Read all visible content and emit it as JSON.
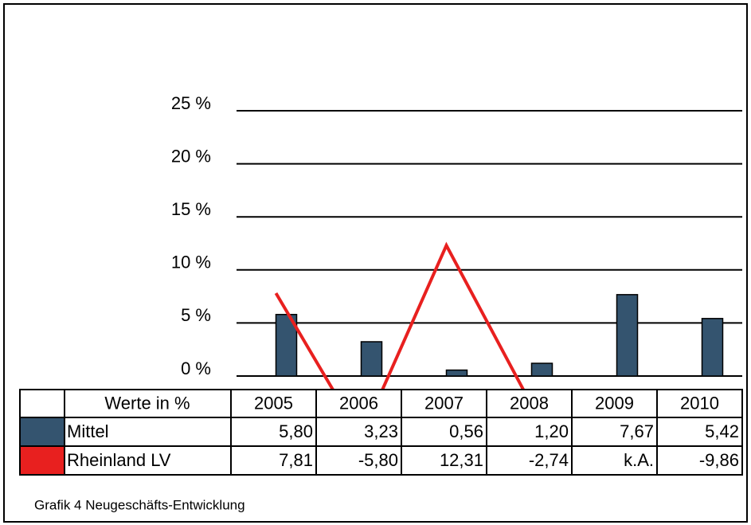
{
  "chart_data": {
    "type": "bar-line",
    "caption": "Grafik 4 Neugeschäfts-Entwicklung",
    "table_header": "Werte in %",
    "categories": [
      "2005",
      "2006",
      "2007",
      "2008",
      "2009",
      "2010"
    ],
    "ylim": [
      0,
      25
    ],
    "yticks": [
      {
        "value": 0,
        "label": "0 %"
      },
      {
        "value": 5,
        "label": "5 %"
      },
      {
        "value": 10,
        "label": "10 %"
      },
      {
        "value": 15,
        "label": "15 %"
      },
      {
        "value": 20,
        "label": "20 %"
      },
      {
        "value": 25,
        "label": "25 %"
      }
    ],
    "grid": true,
    "series": [
      {
        "name": "Mittel",
        "type": "bar",
        "color": "#34546f",
        "values": [
          5.8,
          3.23,
          0.56,
          1.2,
          7.67,
          5.42
        ],
        "value_labels": [
          "5,80",
          "3,23",
          "0,56",
          "1,20",
          "7,67",
          "5,42"
        ]
      },
      {
        "name": "Rheinland LV",
        "type": "line",
        "color": "#e8201f",
        "values": [
          7.81,
          -5.8,
          12.31,
          -2.74,
          null,
          -9.86
        ],
        "value_labels": [
          "7,81",
          "-5,80",
          "12,31",
          "-2,74",
          "k.A.",
          "-9,86"
        ]
      }
    ]
  }
}
